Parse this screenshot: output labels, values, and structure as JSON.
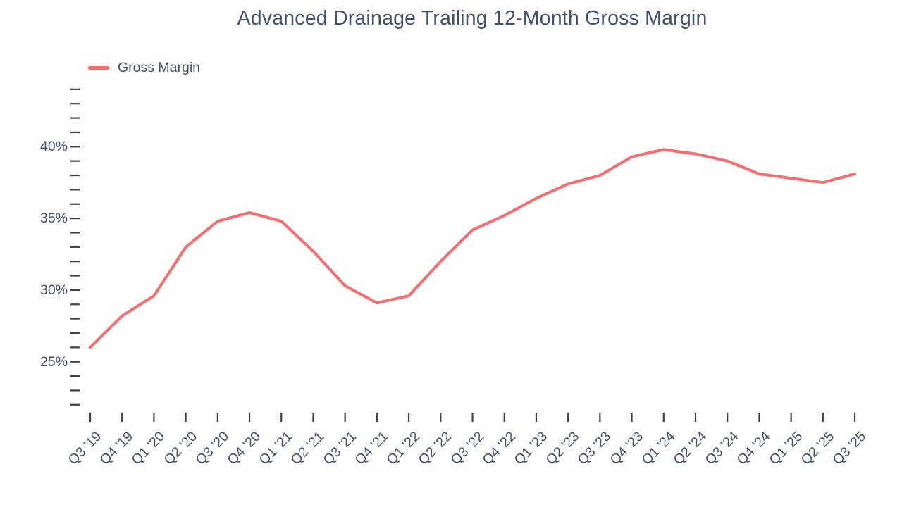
{
  "chart_data": {
    "type": "line",
    "title": "Advanced Drainage Trailing 12-Month Gross Margin",
    "xlabel": "",
    "ylabel": "",
    "grid": false,
    "legend_position": "top-left",
    "categories": [
      "Q3 '19",
      "Q4 '19",
      "Q1 '20",
      "Q2 '20",
      "Q3 '20",
      "Q4 '20",
      "Q1 '21",
      "Q2 '21",
      "Q3 '21",
      "Q4 '21",
      "Q1 '22",
      "Q2 '22",
      "Q3 '22",
      "Q4 '22",
      "Q1 '23",
      "Q2 '23",
      "Q3 '23",
      "Q4 '23",
      "Q1 '24",
      "Q2 '24",
      "Q3 '24",
      "Q4 '24",
      "Q1 '25",
      "Q2 '25",
      "Q3 '25"
    ],
    "series": [
      {
        "name": "Gross Margin",
        "color": "#f76c6c",
        "values": [
          26.0,
          28.2,
          29.6,
          33.0,
          34.8,
          35.4,
          34.8,
          32.7,
          30.3,
          29.1,
          29.6,
          32.0,
          34.2,
          35.2,
          36.4,
          37.4,
          38.0,
          39.3,
          39.8,
          39.5,
          39.0,
          38.1,
          37.8,
          37.5,
          38.1
        ]
      }
    ],
    "y_axis": {
      "unit": "%",
      "tick_min": 22,
      "tick_max": 44,
      "minor_tick_step": 1,
      "labeled_ticks": [
        25,
        30,
        35,
        40
      ]
    },
    "ylim": [
      21.5,
      44.5
    ],
    "colors": {
      "line": "#f76c6c",
      "text": "#42506a",
      "tick_marks": "#3d4148",
      "background": "#ffffff"
    }
  }
}
